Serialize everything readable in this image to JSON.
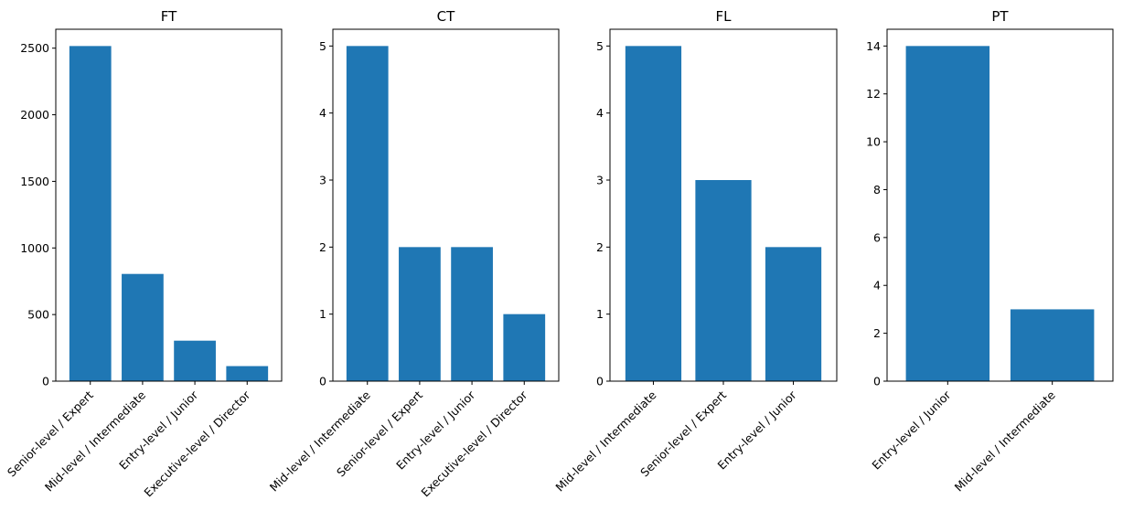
{
  "chart_data": [
    {
      "type": "bar",
      "title": "FT",
      "categories": [
        "Senior-level / Expert",
        "Mid-level / Intermediate",
        "Entry-level / Junior",
        "Executive-level / Director"
      ],
      "values": [
        2516,
        805,
        304,
        113
      ],
      "ylim": [
        0,
        2642
      ],
      "yticks": [
        0,
        500,
        1000,
        1500,
        2000,
        2500
      ],
      "color": "#1f77b4"
    },
    {
      "type": "bar",
      "title": "CT",
      "categories": [
        "Mid-level / Intermediate",
        "Senior-level / Expert",
        "Entry-level / Junior",
        "Executive-level / Director"
      ],
      "values": [
        5,
        2,
        2,
        1
      ],
      "ylim": [
        0,
        5.25
      ],
      "yticks": [
        0,
        1,
        2,
        3,
        4,
        5
      ],
      "color": "#1f77b4"
    },
    {
      "type": "bar",
      "title": "FL",
      "categories": [
        "Mid-level / Intermediate",
        "Senior-level / Expert",
        "Entry-level / Junior"
      ],
      "values": [
        5,
        3,
        2
      ],
      "ylim": [
        0,
        5.25
      ],
      "yticks": [
        0,
        1,
        2,
        3,
        4,
        5
      ],
      "color": "#1f77b4"
    },
    {
      "type": "bar",
      "title": "PT",
      "categories": [
        "Entry-level / Junior",
        "Mid-level / Intermediate"
      ],
      "values": [
        14,
        3
      ],
      "ylim": [
        0,
        14.7
      ],
      "yticks": [
        0,
        2,
        4,
        6,
        8,
        10,
        12,
        14
      ],
      "color": "#1f77b4"
    }
  ]
}
